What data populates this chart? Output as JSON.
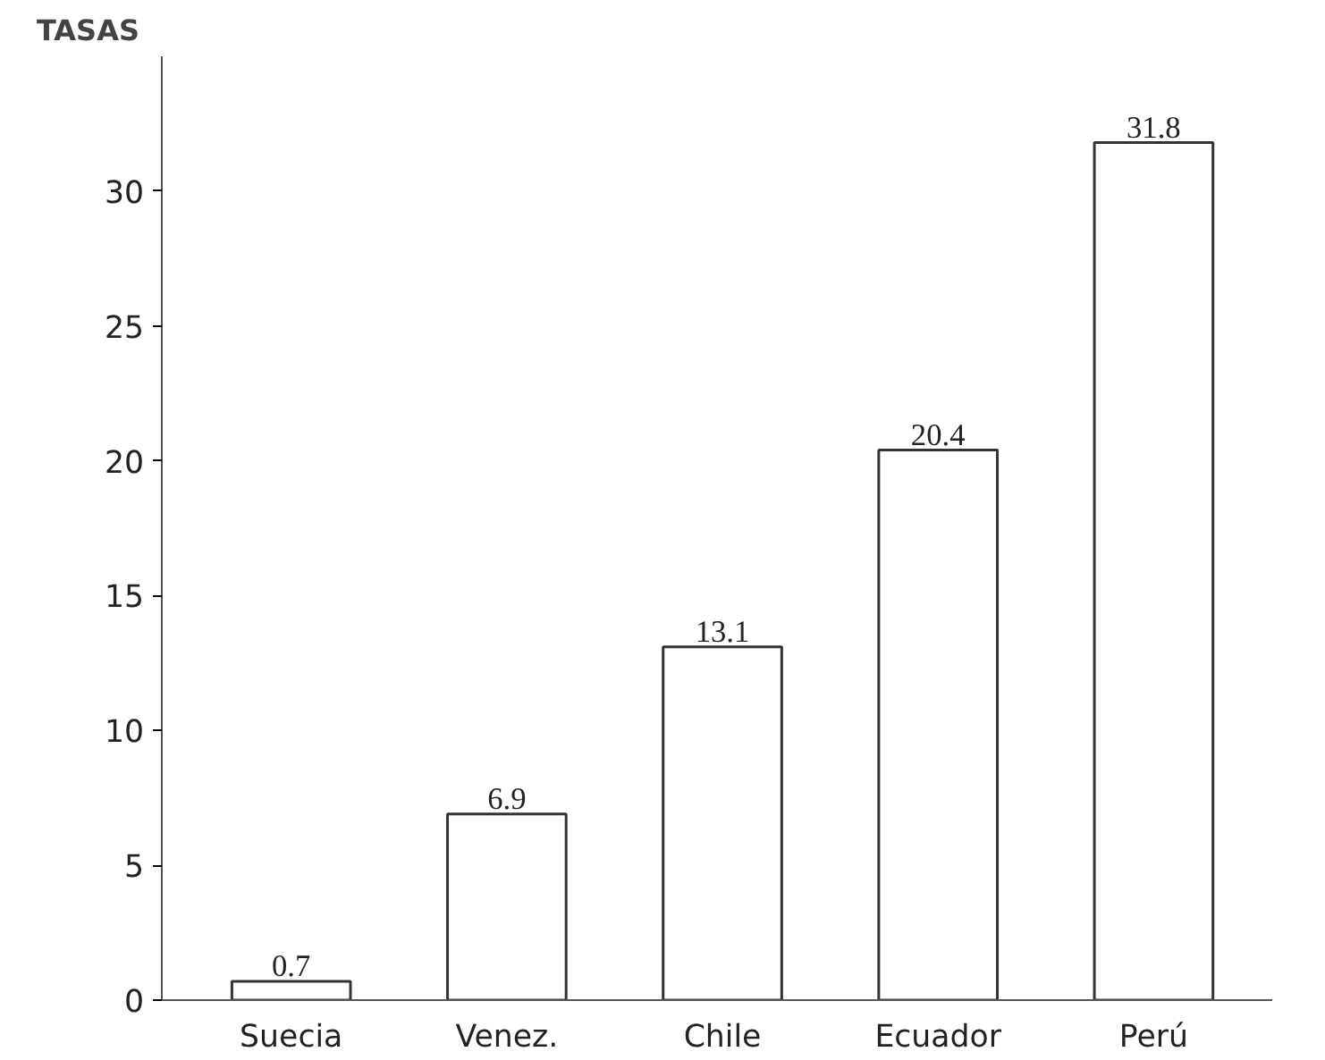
{
  "chart_data": {
    "type": "bar",
    "ylabel": "TASAS",
    "categories": [
      "Suecia",
      "Venez.",
      "Chile",
      "Ecuador",
      "Perú"
    ],
    "values": [
      0.7,
      6.9,
      13.1,
      20.4,
      31.8
    ],
    "color": "#ffffff",
    "ylim": [
      0,
      35
    ],
    "yticks": [
      0,
      5,
      10,
      15,
      20,
      25,
      30
    ],
    "grid": false,
    "data_labels": true
  }
}
